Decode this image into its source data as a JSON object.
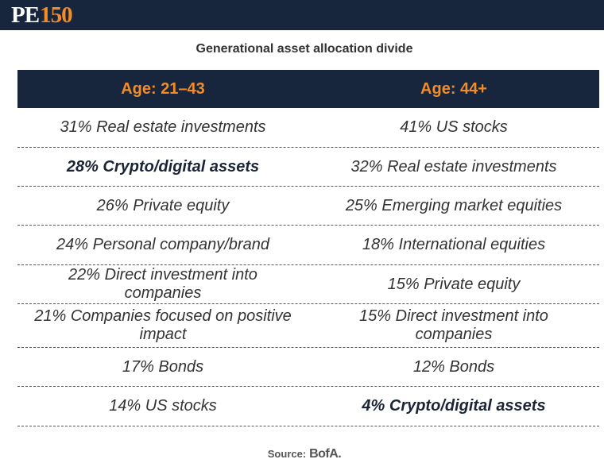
{
  "header": {
    "logo_pe": "PE",
    "logo_num": "150"
  },
  "title": "Generational asset allocation divide",
  "table": {
    "columns": [
      "Age: 21–43",
      "Age: 44+"
    ],
    "rows": [
      {
        "left": "31% Real estate investments",
        "left_bold": false,
        "right": "41% US stocks",
        "right_bold": false
      },
      {
        "left": "28% Crypto/digital assets",
        "left_bold": true,
        "right": "32% Real estate investments",
        "right_bold": false
      },
      {
        "left": "26% Private equity",
        "left_bold": false,
        "right": "25% Emerging market equities",
        "right_bold": false
      },
      {
        "left": "24% Personal company/brand",
        "left_bold": false,
        "right": "18% International equities",
        "right_bold": false
      },
      {
        "left": "22% Direct investment into companies",
        "left_bold": false,
        "right": "15% Private equity",
        "right_bold": false
      },
      {
        "left": "21% Companies focused on positive impact",
        "left_bold": false,
        "right": "15% Direct investment into companies",
        "right_bold": false
      },
      {
        "left": "17% Bonds",
        "left_bold": false,
        "right": "12% Bonds",
        "right_bold": false
      },
      {
        "left": "14% US stocks",
        "left_bold": false,
        "right": "4% Crypto/digital assets",
        "right_bold": true
      }
    ]
  },
  "source": {
    "label": "Source:",
    "brand": "BofA."
  },
  "colors": {
    "navy": "#17263c",
    "orange": "#f28c28"
  }
}
